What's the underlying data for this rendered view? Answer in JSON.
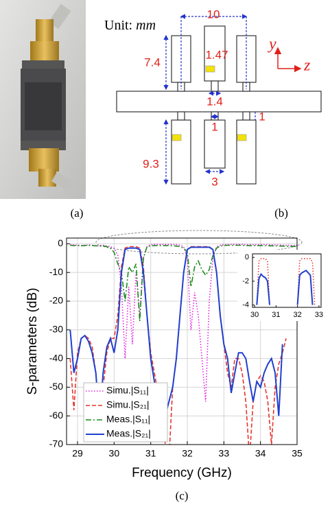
{
  "panel_labels": [
    "(a)",
    "(b)",
    "(c)"
  ],
  "diagram": {
    "unit_label": "Unit:",
    "unit": "mm",
    "dimensions": [
      "10",
      "7.4",
      "1.47",
      "1.4",
      "1",
      "1",
      "9.3",
      "3"
    ],
    "axes": [
      "y",
      "z"
    ]
  },
  "chart_data": [
    {
      "type": "line",
      "xlabel": "Frequency (GHz)",
      "ylabel": "S-parameters (dB)",
      "xlim": [
        28.7,
        35
      ],
      "ylim": [
        -70,
        2
      ],
      "xticks": [
        29,
        30,
        31,
        32,
        33,
        34,
        35
      ],
      "yticks": [
        0,
        -10,
        -20,
        -30,
        -40,
        -50,
        -60,
        -70
      ],
      "grid": true,
      "legend": "lower left",
      "x": [
        28.8,
        28.9,
        29.0,
        29.1,
        29.2,
        29.3,
        29.4,
        29.5,
        29.6,
        29.7,
        29.8,
        29.9,
        30.0,
        30.1,
        30.2,
        30.3,
        30.4,
        30.5,
        30.6,
        30.7,
        30.8,
        30.9,
        31.0,
        31.1,
        31.2,
        31.3,
        31.4,
        31.5,
        31.6,
        31.7,
        31.8,
        31.9,
        32.0,
        32.1,
        32.2,
        32.3,
        32.4,
        32.5,
        32.6,
        32.7,
        32.8,
        32.9,
        33.0,
        33.1,
        33.2,
        33.3,
        33.4,
        33.5,
        33.6,
        33.7,
        33.8,
        33.9,
        34.0,
        34.1,
        34.2,
        34.3,
        34.4,
        34.5,
        34.6,
        34.7,
        34.8,
        34.9,
        35.0
      ],
      "series": [
        {
          "name": "Simu.|S₁₁|",
          "color": "#e020e0",
          "style": "dotted",
          "values": [
            -0.3,
            -0.4,
            -0.5,
            -0.6,
            -0.5,
            -0.4,
            -0.5,
            -0.7,
            -0.6,
            -0.5,
            -0.8,
            -1,
            -1.5,
            -4,
            -15,
            -40,
            -15,
            -35,
            -10,
            -25,
            -5,
            -1,
            -0.3,
            -0.2,
            -0.2,
            -0.2,
            -0.2,
            -0.2,
            -0.2,
            -0.3,
            -0.5,
            -1,
            -5,
            -30,
            -17,
            -25,
            -40,
            -55,
            -20,
            -5,
            -1,
            -0.5,
            -0.3,
            -0.3,
            -0.2,
            -0.2,
            -0.2,
            -0.2,
            -0.3,
            -0.3,
            -0.3,
            -0.3,
            -0.3,
            -0.3,
            -0.3,
            -0.4,
            -0.4,
            -0.4,
            -0.5,
            -0.5,
            -0.5,
            -0.6,
            -0.6
          ]
        },
        {
          "name": "Simu.|S₂₁|",
          "color": "#e8332a",
          "style": "dashed",
          "values": [
            -40,
            -58,
            -38,
            -33,
            -32,
            -33,
            -36,
            -45,
            -62,
            -50,
            -38,
            -33,
            -33,
            -25,
            -8,
            -1.5,
            -1,
            -1,
            -1,
            -1.5,
            -8,
            -25,
            -38,
            -45,
            -52,
            -60,
            -70,
            -75,
            -50,
            -40,
            -25,
            -10,
            -2,
            -1,
            -1,
            -1,
            -1,
            -1,
            -1,
            -2,
            -10,
            -25,
            -35,
            -45,
            -50,
            -40,
            -40,
            -45,
            -55,
            -75,
            -55,
            -48,
            -46,
            -48,
            -55,
            -70,
            -50,
            -42,
            -38,
            -33,
            null,
            null,
            null
          ]
        },
        {
          "name": "Meas.|S₁₁|",
          "color": "#1a8c1a",
          "style": "dashdot",
          "values": [
            -0.5,
            -0.6,
            -0.6,
            -0.7,
            -0.6,
            -0.5,
            -0.6,
            -0.7,
            -0.8,
            -0.7,
            -1,
            -1.5,
            -3,
            -7,
            -10,
            -20,
            -8,
            -10,
            -7,
            -27,
            -5,
            -1,
            -0.7,
            -0.6,
            -0.6,
            -0.6,
            -0.6,
            -0.6,
            -0.7,
            -0.8,
            -1,
            -1.5,
            -3,
            -15,
            -8,
            -6,
            -9,
            -11,
            -9,
            -4,
            -1.5,
            -0.8,
            -0.6,
            -0.5,
            -0.5,
            -0.5,
            -0.5,
            -0.5,
            -0.6,
            -0.6,
            -0.6,
            -0.6,
            -0.6,
            -0.6,
            -0.7,
            -0.7,
            -0.7,
            -0.8,
            -0.8,
            -0.8,
            -0.9,
            -0.9,
            -1
          ]
        },
        {
          "name": "Meas.|S₂₁|",
          "color": "#1f3fd0",
          "style": "solid",
          "values": [
            -30,
            -45,
            -40,
            -33,
            -32,
            -34,
            -38,
            -45,
            -62,
            -45,
            -36,
            -33,
            -38,
            -30,
            -10,
            -2,
            -1.5,
            -1.5,
            -1.5,
            -2,
            -10,
            -25,
            -40,
            -48,
            -55,
            -52,
            -60,
            -55,
            -50,
            -40,
            -25,
            -10,
            -2,
            -1.2,
            -1.2,
            -1.2,
            -1.2,
            -1.2,
            -1.2,
            -2,
            -10,
            -25,
            -35,
            -40,
            -52,
            -45,
            -38,
            -38,
            -40,
            -48,
            -55,
            -48,
            -50,
            -45,
            -42,
            -40,
            -45,
            -60,
            -35,
            null,
            null,
            null,
            null
          ]
        }
      ]
    },
    {
      "type": "line",
      "xlim": [
        29.9,
        33.1
      ],
      "ylim": [
        -4.2,
        0.3
      ],
      "xticks": [
        30,
        31,
        32,
        33
      ],
      "yticks": [
        0,
        -2,
        -4
      ],
      "grid": false,
      "x": [
        30.0,
        30.1,
        30.2,
        30.3,
        30.4,
        30.5,
        30.6,
        30.7,
        30.8,
        30.9,
        31.0,
        31.1,
        31.2,
        31.3,
        31.4,
        31.5,
        31.6,
        31.7,
        31.8,
        31.9,
        32.0,
        32.1,
        32.2,
        32.3,
        32.4,
        32.5,
        32.6,
        32.7,
        32.8,
        32.9,
        33.0
      ],
      "series": [
        {
          "color": "#e8332a",
          "style": "dotted",
          "values": [
            null,
            -4,
            -0.3,
            -0.1,
            -0.1,
            -0.1,
            -0.3,
            -4,
            null,
            null,
            null,
            null,
            null,
            null,
            null,
            null,
            null,
            null,
            null,
            null,
            -4,
            -0.3,
            -0.1,
            -0.1,
            -0.1,
            -0.1,
            -0.1,
            -0.4,
            -4,
            null,
            null
          ]
        },
        {
          "color": "#1f3fd0",
          "style": "solid",
          "values": [
            null,
            -4,
            -1.8,
            -1.4,
            -1.6,
            -1.7,
            -2,
            -4,
            null,
            null,
            null,
            null,
            null,
            null,
            null,
            null,
            null,
            null,
            null,
            null,
            -4,
            -1.5,
            -1.3,
            -1.2,
            -1.1,
            -1.3,
            -1.5,
            -4,
            null,
            null,
            null
          ]
        }
      ]
    }
  ]
}
